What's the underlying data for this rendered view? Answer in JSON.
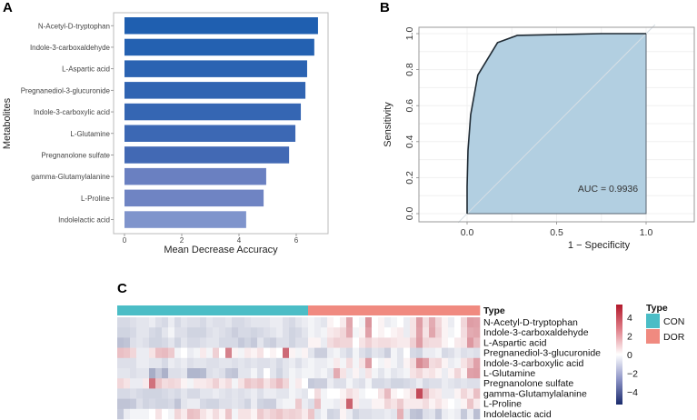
{
  "figure": {
    "panels": [
      "A",
      "B",
      "C"
    ]
  },
  "chart_data": [
    {
      "id": "A",
      "type": "bar",
      "orientation": "horizontal",
      "title": "",
      "xlabel": "Mean Decrease Accuracy",
      "ylabel": "Metabolites",
      "xlim": [
        0,
        7.1
      ],
      "xticks": [
        0,
        2,
        4,
        6
      ],
      "grid": false,
      "categories": [
        "N-Acetyl-D-tryptophan",
        "Indole-3-carboxaldehyde",
        "L-Aspartic acid",
        "Pregnanediol-3-glucuronide",
        "Indole-3-carboxylic acid",
        "L-Glutamine",
        "Pregnanolone sulfate",
        "gamma-Glutamylalanine",
        "L-Proline",
        "Indolelactic acid"
      ],
      "values": [
        6.76,
        6.63,
        6.38,
        6.32,
        6.16,
        5.97,
        5.75,
        4.95,
        4.86,
        4.25
      ],
      "colors": [
        "#1f5fb0",
        "#2461b1",
        "#2b63b2",
        "#3064b2",
        "#3566b3",
        "#3c68b4",
        "#4269b4",
        "#6a80c1",
        "#6f84c3",
        "#7f94cc"
      ]
    },
    {
      "id": "B",
      "type": "line",
      "subtype": "roc",
      "title": "",
      "xlabel": "1 − Specificity",
      "ylabel": "Sensitivity",
      "xlim": [
        -0.25,
        1.25
      ],
      "ylim": [
        -0.04,
        1.04
      ],
      "xticks": [
        "0.0",
        "0.5",
        "1.0"
      ],
      "yticks": [
        "0.0",
        "0.2",
        "0.4",
        "0.6",
        "0.8",
        "1.0"
      ],
      "grid": true,
      "series": [
        {
          "name": "ROC",
          "x": [
            0.0,
            0.0,
            0.005,
            0.02,
            0.06,
            0.17,
            0.28,
            0.75,
            1.0
          ],
          "y": [
            0.0,
            0.15,
            0.35,
            0.55,
            0.77,
            0.95,
            0.99,
            1.0,
            1.0
          ]
        }
      ],
      "reference_line": {
        "x": [
          -0.05,
          1.05
        ],
        "y": [
          -0.05,
          1.05
        ]
      },
      "fill_color": "#b2cfe1",
      "annotation": "AUC = 0.9936"
    },
    {
      "id": "C",
      "type": "heatmap",
      "title": "",
      "annotation_title": "Type",
      "groups": [
        {
          "name": "CON",
          "count": 30,
          "color": "#4bbdc6"
        },
        {
          "name": "DOR",
          "count": 27,
          "color": "#f08a80"
        }
      ],
      "rows": [
        "N-Acetyl-D-tryptophan",
        "Indole-3-carboxaldehyde",
        "L-Aspartic acid",
        "Pregnanediol-3-glucuronide",
        "Indole-3-carboxylic acid",
        "L-Glutamine",
        "Pregnanolone sulfate",
        "gamma-Glutamylalanine",
        "L-Proline",
        "Indolelactic acid"
      ],
      "colorbar": {
        "min": -5,
        "max": 5,
        "ticks": [
          "4",
          "2",
          "0",
          "−2",
          "−4"
        ],
        "tick_values": [
          4,
          2,
          0,
          -2,
          -4
        ],
        "low": "#1a2a6c",
        "mid": "#ffffff",
        "high": "#b2182b"
      },
      "legend_title": "Type",
      "legend": [
        {
          "label": "CON",
          "color": "#4bbdc6"
        },
        {
          "label": "DOR",
          "color": "#f08a80"
        }
      ],
      "values": [
        [
          -0.5,
          -0.5,
          -0.4,
          -0.3,
          -0.3,
          -0.2,
          -0.4,
          -0.5,
          -0.2,
          -0.5,
          -0.3,
          -0.4,
          -0.4,
          -0.5,
          -0.3,
          -0.4,
          -0.4,
          -0.3,
          -0.5,
          -0.5,
          -0.4,
          -0.3,
          -0.3,
          -0.3,
          -0.2,
          -0.2,
          -0.4,
          -0.5,
          -0.3,
          -0.2,
          -0.1,
          -0.2,
          -0.3,
          0.1,
          0.0,
          0.2,
          1.4,
          0.0,
          -0.1,
          1.8,
          0.0,
          0.1,
          -0.2,
          -0.1,
          0.0,
          -0.2,
          0.3,
          1.6,
          0.4,
          1.3,
          0.5,
          0.1,
          -0.2,
          0.0,
          0.5,
          1.6,
          1.5
        ],
        [
          -0.6,
          -0.6,
          -0.5,
          -0.3,
          -0.3,
          -0.5,
          -0.6,
          -0.3,
          -0.1,
          -0.4,
          -0.4,
          -0.6,
          -0.6,
          -0.6,
          -0.4,
          -0.3,
          -0.4,
          -0.5,
          -0.7,
          -0.5,
          -0.5,
          -0.6,
          -0.5,
          -0.4,
          -0.3,
          -0.2,
          -0.4,
          -0.6,
          -0.5,
          -0.3,
          -0.1,
          -0.2,
          -0.1,
          0.2,
          0.3,
          0.5,
          1.3,
          -0.1,
          0.1,
          1.5,
          0.0,
          0.1,
          0.0,
          0.1,
          0.2,
          -0.2,
          0.3,
          1.5,
          0.3,
          1.4,
          0.6,
          0.1,
          -0.1,
          0.0,
          0.4,
          1.3,
          1.4
        ],
        [
          -1.0,
          -0.9,
          -0.4,
          -0.3,
          -0.4,
          -0.6,
          -0.6,
          -0.5,
          -0.3,
          -0.6,
          -0.3,
          -0.5,
          -0.5,
          -0.4,
          -0.3,
          -0.3,
          -0.5,
          -0.5,
          -0.5,
          -0.8,
          -0.6,
          -0.8,
          -0.3,
          -0.6,
          -0.7,
          -0.4,
          -0.4,
          -0.6,
          -0.4,
          -0.4,
          0.1,
          0.1,
          -0.2,
          0.4,
          0.6,
          0.5,
          0.5,
          0.0,
          0.3,
          0.6,
          0.3,
          0.4,
          0.4,
          0.3,
          0.2,
          0.2,
          0.6,
          1.6,
          0.5,
          0.4,
          0.4,
          0.1,
          0.0,
          0.2,
          0.3,
          1.7,
          1.0
        ],
        [
          0.9,
          0.8,
          0.5,
          -0.2,
          -0.2,
          0.3,
          0.9,
          1.0,
          0.7,
          -0.1,
          0.0,
          -0.2,
          -0.1,
          0.2,
          -0.1,
          0.6,
          0.0,
          2.2,
          0.1,
          -0.1,
          0.2,
          0.1,
          0.3,
          0.0,
          0.1,
          0.0,
          2.8,
          0.1,
          -0.1,
          0.1,
          -0.3,
          -0.7,
          -0.7,
          -0.2,
          -0.1,
          -0.3,
          -0.5,
          -0.1,
          -0.4,
          -0.6,
          -0.3,
          -0.4,
          -0.7,
          -0.1,
          -0.3,
          0.0,
          -0.5,
          -0.6,
          -0.2,
          -0.2,
          -0.1,
          -0.5,
          -0.4,
          -0.2,
          -0.4,
          -0.3,
          -0.4
        ],
        [
          -0.4,
          -0.4,
          -0.4,
          -0.2,
          -0.2,
          -0.3,
          -0.3,
          -0.5,
          -0.2,
          -0.3,
          -0.2,
          -0.4,
          -0.3,
          -0.3,
          -0.4,
          -0.4,
          -0.3,
          -0.3,
          -0.4,
          -0.3,
          -0.4,
          -0.3,
          -0.4,
          -0.4,
          -0.3,
          -0.5,
          -0.3,
          -0.2,
          -0.4,
          -0.2,
          -0.1,
          -0.2,
          -0.2,
          -0.1,
          0.2,
          -0.1,
          0.4,
          -0.1,
          0.3,
          1.6,
          0.0,
          -0.1,
          0.1,
          -0.1,
          -0.3,
          0.1,
          0.4,
          2.0,
          1.5,
          0.4,
          0.5,
          0.1,
          -0.2,
          -0.1,
          0.3,
          0.7,
          1.5
        ],
        [
          -0.3,
          -0.3,
          -0.4,
          -0.3,
          -0.3,
          -1.4,
          -0.8,
          -1.3,
          -0.4,
          -0.4,
          -0.3,
          -1.2,
          -1.2,
          -1.1,
          -0.4,
          -0.3,
          -0.4,
          -0.8,
          -0.9,
          -0.3,
          -0.3,
          -0.1,
          -0.4,
          0.0,
          -0.3,
          -0.6,
          -0.3,
          -0.1,
          -0.2,
          -0.1,
          -0.1,
          -0.2,
          -0.1,
          -0.3,
          1.3,
          0.3,
          -0.2,
          0.1,
          -0.2,
          0.3,
          -0.1,
          -0.3,
          -0.1,
          -0.3,
          -0.2,
          -0.1,
          0.3,
          0.5,
          0.2,
          0.3,
          0.1,
          -0.2,
          0.1,
          0.5,
          0.1,
          1.5,
          1.6
        ],
        [
          0.5,
          0.3,
          -0.2,
          -0.2,
          0.2,
          2.6,
          0.8,
          0.4,
          0.5,
          0.4,
          0.1,
          -0.1,
          0.2,
          0.2,
          0.3,
          0.6,
          0.2,
          0.4,
          -0.1,
          0.3,
          0.8,
          0.6,
          0.8,
          0.3,
          0.6,
          1.0,
          0.5,
          -0.1,
          0.2,
          0.0,
          -0.8,
          -0.7,
          -0.7,
          -0.2,
          -0.4,
          -0.4,
          -0.1,
          -0.3,
          -0.4,
          -0.1,
          -0.5,
          -0.5,
          -0.4,
          -0.6,
          -0.6,
          -0.5,
          -0.4,
          -0.2,
          -0.5,
          -0.4,
          -0.4,
          -0.2,
          -0.3,
          -0.4,
          -0.3,
          -0.4,
          -0.4
        ],
        [
          -0.5,
          -0.5,
          -0.4,
          -0.5,
          -0.6,
          -0.6,
          -0.6,
          -0.5,
          -0.4,
          -0.5,
          -0.3,
          -0.5,
          -0.5,
          -0.3,
          -0.3,
          -0.2,
          -0.3,
          -0.4,
          -0.3,
          -0.4,
          -0.3,
          -0.2,
          -0.4,
          -0.2,
          -0.2,
          -0.3,
          -0.3,
          -0.1,
          -0.2,
          -0.3,
          0.0,
          0.4,
          -0.1,
          0.0,
          0.0,
          0.1,
          0.4,
          0.2,
          -0.1,
          0.0,
          0.0,
          0.3,
          1.0,
          0.1,
          0.0,
          0.1,
          0.4,
          3.6,
          1.0,
          0.3,
          0.2,
          -0.2,
          -0.2,
          0.1,
          0.5,
          0.2,
          0.9
        ],
        [
          -0.9,
          -0.9,
          -0.8,
          -0.4,
          -0.6,
          -0.5,
          -0.6,
          -0.6,
          -0.5,
          -0.9,
          -0.3,
          -0.2,
          -0.2,
          -0.5,
          -0.6,
          -0.6,
          -0.4,
          -0.4,
          -0.3,
          -0.4,
          -0.6,
          -0.2,
          -0.6,
          -0.7,
          -0.7,
          -0.2,
          -0.1,
          -0.1,
          0.7,
          -0.2,
          -0.4,
          0.9,
          -0.1,
          -0.1,
          -0.2,
          0.2,
          3.0,
          0.2,
          -0.2,
          -0.2,
          0.1,
          0.1,
          0.5,
          0.3,
          0.7,
          0.2,
          0.2,
          0.2,
          0.4,
          0.1,
          0.3,
          0.1,
          0.0,
          -0.1,
          0.1,
          0.8,
          0.2
        ],
        [
          -0.8,
          -0.2,
          -0.1,
          -0.1,
          -0.1,
          0.0,
          0.3,
          0.0,
          -0.1,
          0.5,
          0.2,
          0.9,
          0.8,
          0.3,
          0.1,
          0.4,
          0.1,
          0.8,
          -0.1,
          0.3,
          0.3,
          0.1,
          0.7,
          0.4,
          0.6,
          0.8,
          0.5,
          0.6,
          0.5,
          0.2,
          0.8,
          -0.3,
          -0.1,
          -0.6,
          -0.5,
          0.1,
          -0.2,
          -0.6,
          -0.4,
          -0.4,
          -0.3,
          -0.3,
          -0.2,
          -0.3,
          1.2,
          -0.3,
          -0.9,
          -1.0,
          -0.4,
          -0.3,
          -0.8,
          -0.2,
          -0.1,
          -0.2,
          -0.8,
          -0.2,
          -1.0
        ]
      ]
    }
  ]
}
